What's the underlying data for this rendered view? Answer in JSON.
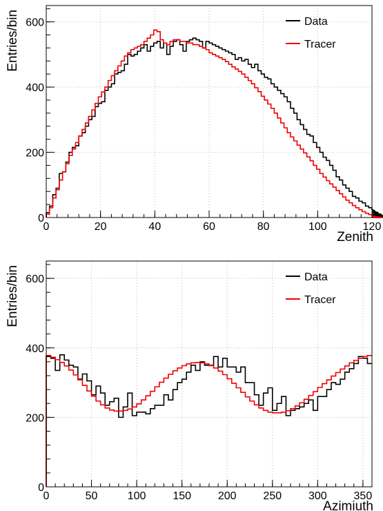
{
  "chart_data": [
    {
      "type": "line",
      "xlabel": "Zenith",
      "ylabel": "Entries/bin",
      "xlim": [
        0,
        120
      ],
      "ylim": [
        0,
        650
      ],
      "grid": true,
      "legend_placement": "top-right",
      "x_ticks": [
        0,
        20,
        40,
        60,
        80,
        100,
        120
      ],
      "y_ticks": [
        0,
        200,
        400,
        600
      ],
      "bin_width": 1.2,
      "series": [
        {
          "name": "Data",
          "color": "#000000",
          "values": [
            15,
            35,
            70,
            90,
            135,
            140,
            170,
            200,
            215,
            220,
            250,
            260,
            280,
            300,
            310,
            340,
            350,
            355,
            390,
            400,
            410,
            440,
            445,
            450,
            470,
            500,
            495,
            500,
            510,
            520,
            530,
            510,
            525,
            535,
            540,
            520,
            535,
            500,
            525,
            540,
            545,
            530,
            510,
            540,
            545,
            550,
            545,
            540,
            520,
            540,
            535,
            530,
            525,
            520,
            515,
            510,
            505,
            500,
            485,
            490,
            480,
            485,
            470,
            460,
            470,
            450,
            440,
            430,
            425,
            410,
            400,
            390,
            380,
            370,
            355,
            335,
            320,
            300,
            285,
            270,
            255,
            250,
            230,
            215,
            200,
            185,
            175,
            160,
            145,
            125,
            115,
            100,
            90,
            80,
            65,
            60,
            50,
            45,
            35,
            30,
            25,
            20,
            15,
            10,
            6,
            3,
            2,
            1,
            0,
            0
          ]
        },
        {
          "name": "Tracer",
          "color": "#ee0000",
          "values": [
            10,
            30,
            60,
            85,
            115,
            140,
            165,
            190,
            210,
            230,
            250,
            270,
            290,
            310,
            330,
            350,
            370,
            385,
            400,
            420,
            435,
            450,
            465,
            480,
            495,
            505,
            515,
            520,
            525,
            530,
            540,
            550,
            560,
            575,
            570,
            545,
            535,
            530,
            540,
            545,
            545,
            540,
            540,
            535,
            535,
            530,
            530,
            525,
            520,
            515,
            505,
            500,
            495,
            490,
            485,
            478,
            470,
            462,
            455,
            448,
            440,
            430,
            420,
            410,
            398,
            386,
            372,
            360,
            348,
            335,
            320,
            305,
            290,
            275,
            260,
            247,
            235,
            222,
            210,
            198,
            186,
            174,
            160,
            148,
            135,
            124,
            113,
            103,
            93,
            83,
            73,
            63,
            53,
            45,
            37,
            30,
            24,
            18,
            13,
            9,
            6,
            4,
            2,
            1,
            0,
            0,
            0,
            0,
            0,
            0
          ]
        }
      ]
    },
    {
      "type": "line",
      "xlabel": "Azimiuth",
      "ylabel": "Entries/bin",
      "xlim": [
        0,
        360
      ],
      "ylim": [
        0,
        650
      ],
      "grid": true,
      "legend_placement": "top-right",
      "x_ticks": [
        0,
        50,
        100,
        150,
        200,
        250,
        300,
        350
      ],
      "y_ticks": [
        0,
        200,
        400,
        600
      ],
      "bin_width": 5,
      "series": [
        {
          "name": "Data",
          "color": "#000000",
          "values": [
            375,
            370,
            335,
            380,
            365,
            350,
            345,
            310,
            325,
            305,
            265,
            290,
            270,
            235,
            245,
            255,
            200,
            230,
            270,
            205,
            215,
            215,
            210,
            225,
            235,
            235,
            265,
            250,
            280,
            300,
            310,
            330,
            350,
            335,
            360,
            350,
            350,
            375,
            345,
            370,
            345,
            345,
            330,
            345,
            300,
            300,
            265,
            235,
            270,
            285,
            220,
            240,
            260,
            205,
            220,
            225,
            230,
            240,
            250,
            220,
            260,
            260,
            280,
            300,
            295,
            310,
            330,
            340,
            355,
            375,
            370,
            355
          ]
        },
        {
          "name": "Tracer",
          "color": "#ee0000",
          "values": [
            378,
            373,
            366,
            358,
            348,
            336,
            322,
            308,
            292,
            276,
            261,
            247,
            236,
            227,
            221,
            218,
            218,
            220,
            224,
            230,
            239,
            250,
            262,
            275,
            288,
            301,
            313,
            324,
            334,
            342,
            349,
            354,
            357,
            358,
            357,
            354,
            349,
            342,
            333,
            323,
            311,
            298,
            285,
            272,
            259,
            247,
            236,
            227,
            220,
            215,
            213,
            213,
            215,
            219,
            225,
            233,
            242,
            252,
            263,
            274,
            286,
            297,
            308,
            319,
            329,
            339,
            348,
            357,
            364,
            370,
            375,
            378
          ]
        }
      ]
    }
  ]
}
